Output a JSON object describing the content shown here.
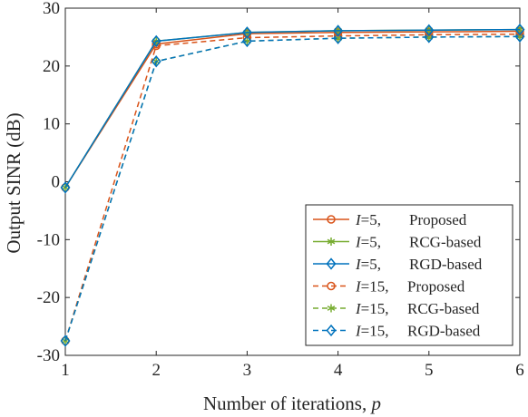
{
  "chart_data": {
    "type": "line",
    "title": "",
    "xlabel": "Number of iterations, ",
    "xlabel_var": "p",
    "ylabel": "Output SINR (dB)",
    "xlim": [
      1,
      6
    ],
    "ylim": [
      -30,
      30
    ],
    "xticks": [
      "1",
      "2",
      "3",
      "4",
      "5",
      "6"
    ],
    "yticks": [
      "-30",
      "-20",
      "-10",
      "0",
      "10",
      "20",
      "30"
    ],
    "grid": false,
    "legend_position": "bottom-right",
    "x": [
      1,
      2,
      3,
      4,
      5,
      6
    ],
    "series": [
      {
        "name_var": "I",
        "name_eq": "=5,",
        "name_text": "Proposed",
        "color": "#D95319",
        "style": "solid",
        "marker": "circle",
        "values": [
          -1.0,
          23.8,
          25.6,
          25.8,
          25.9,
          26.0
        ]
      },
      {
        "name_var": "I",
        "name_eq": "=5,",
        "name_text": "RCG-based",
        "color": "#77AC30",
        "style": "solid",
        "marker": "asterisk",
        "values": [
          -1.0,
          24.3,
          25.8,
          26.1,
          26.2,
          26.3
        ]
      },
      {
        "name_var": "I",
        "name_eq": "=5,",
        "name_text": "RGD-based",
        "color": "#0072BD",
        "style": "solid",
        "marker": "diamond",
        "values": [
          -1.0,
          24.3,
          25.8,
          26.1,
          26.2,
          26.3
        ]
      },
      {
        "name_var": "I",
        "name_eq": "=15,",
        "name_text": "Proposed",
        "color": "#D95319",
        "style": "dashed",
        "marker": "circle",
        "values": [
          -27.5,
          23.5,
          24.9,
          25.2,
          25.4,
          25.5
        ]
      },
      {
        "name_var": "I",
        "name_eq": "=15,",
        "name_text": "RCG-based",
        "color": "#77AC30",
        "style": "dashed",
        "marker": "asterisk",
        "values": [
          -27.5,
          20.8,
          24.3,
          24.8,
          25.0,
          25.1
        ]
      },
      {
        "name_var": "I",
        "name_eq": "=15,",
        "name_text": "RGD-based",
        "color": "#0072BD",
        "style": "dashed",
        "marker": "diamond",
        "values": [
          -27.5,
          20.8,
          24.3,
          24.8,
          25.0,
          25.1
        ]
      }
    ]
  }
}
